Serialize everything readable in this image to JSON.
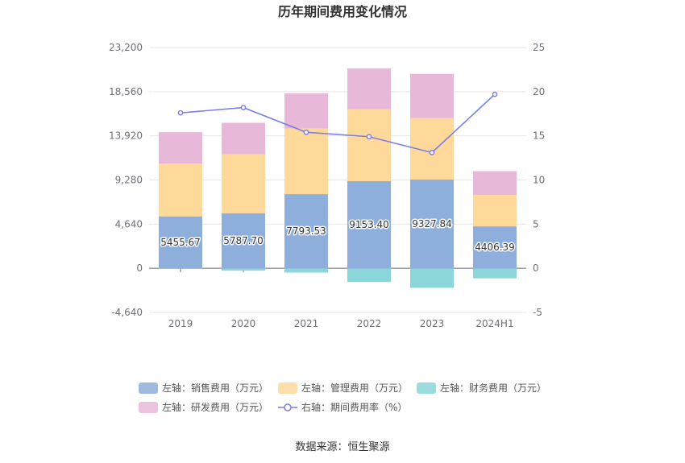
{
  "chart_data": {
    "type": "bar",
    "title": "历年期间费用变化情况",
    "categories": [
      "2019",
      "2020",
      "2021",
      "2022",
      "2023",
      "2024H1"
    ],
    "left_axis": {
      "min": -4640,
      "max": 23200,
      "ticks": [
        "-4,640",
        "0",
        "4,640",
        "9,280",
        "13,920",
        "18,560",
        "23,200"
      ]
    },
    "right_axis": {
      "min": -5,
      "max": 25,
      "ticks": [
        "-5",
        "0",
        "5",
        "10",
        "15",
        "20",
        "25"
      ]
    },
    "series": [
      {
        "name": "左轴：销售费用（万元）",
        "axis": "left",
        "stack": "total",
        "color": "#8eaedc",
        "values": [
          5455.67,
          5787.7,
          7793.53,
          9153.4,
          9327.84,
          4406.39
        ],
        "labels": [
          "5455.67",
          "5787.70",
          "7793.53",
          "9153.40",
          "9327.84",
          "4406.39"
        ]
      },
      {
        "name": "左轴：管理费用（万元）",
        "axis": "left",
        "stack": "total",
        "color": "#ffd99a",
        "values": [
          5550,
          6200,
          6900,
          7550,
          6450,
          3300
        ]
      },
      {
        "name": "左轴：财务费用（万元）",
        "axis": "left",
        "stack": "total",
        "color": "#8ad6d8",
        "values": [
          -20,
          -250,
          -450,
          -1450,
          -2050,
          -1050
        ]
      },
      {
        "name": "左轴：研发费用（万元）",
        "axis": "left",
        "stack": "total",
        "color": "#e8b8d8",
        "values": [
          3300,
          3300,
          3700,
          4300,
          4650,
          2500
        ]
      },
      {
        "name": "右轴：期间费用率（%）",
        "axis": "right",
        "type": "line",
        "color": "#7b7fe6",
        "values": [
          17.6,
          18.2,
          15.4,
          14.9,
          13.1,
          19.7
        ]
      }
    ]
  },
  "source": "数据来源：恒生聚源"
}
